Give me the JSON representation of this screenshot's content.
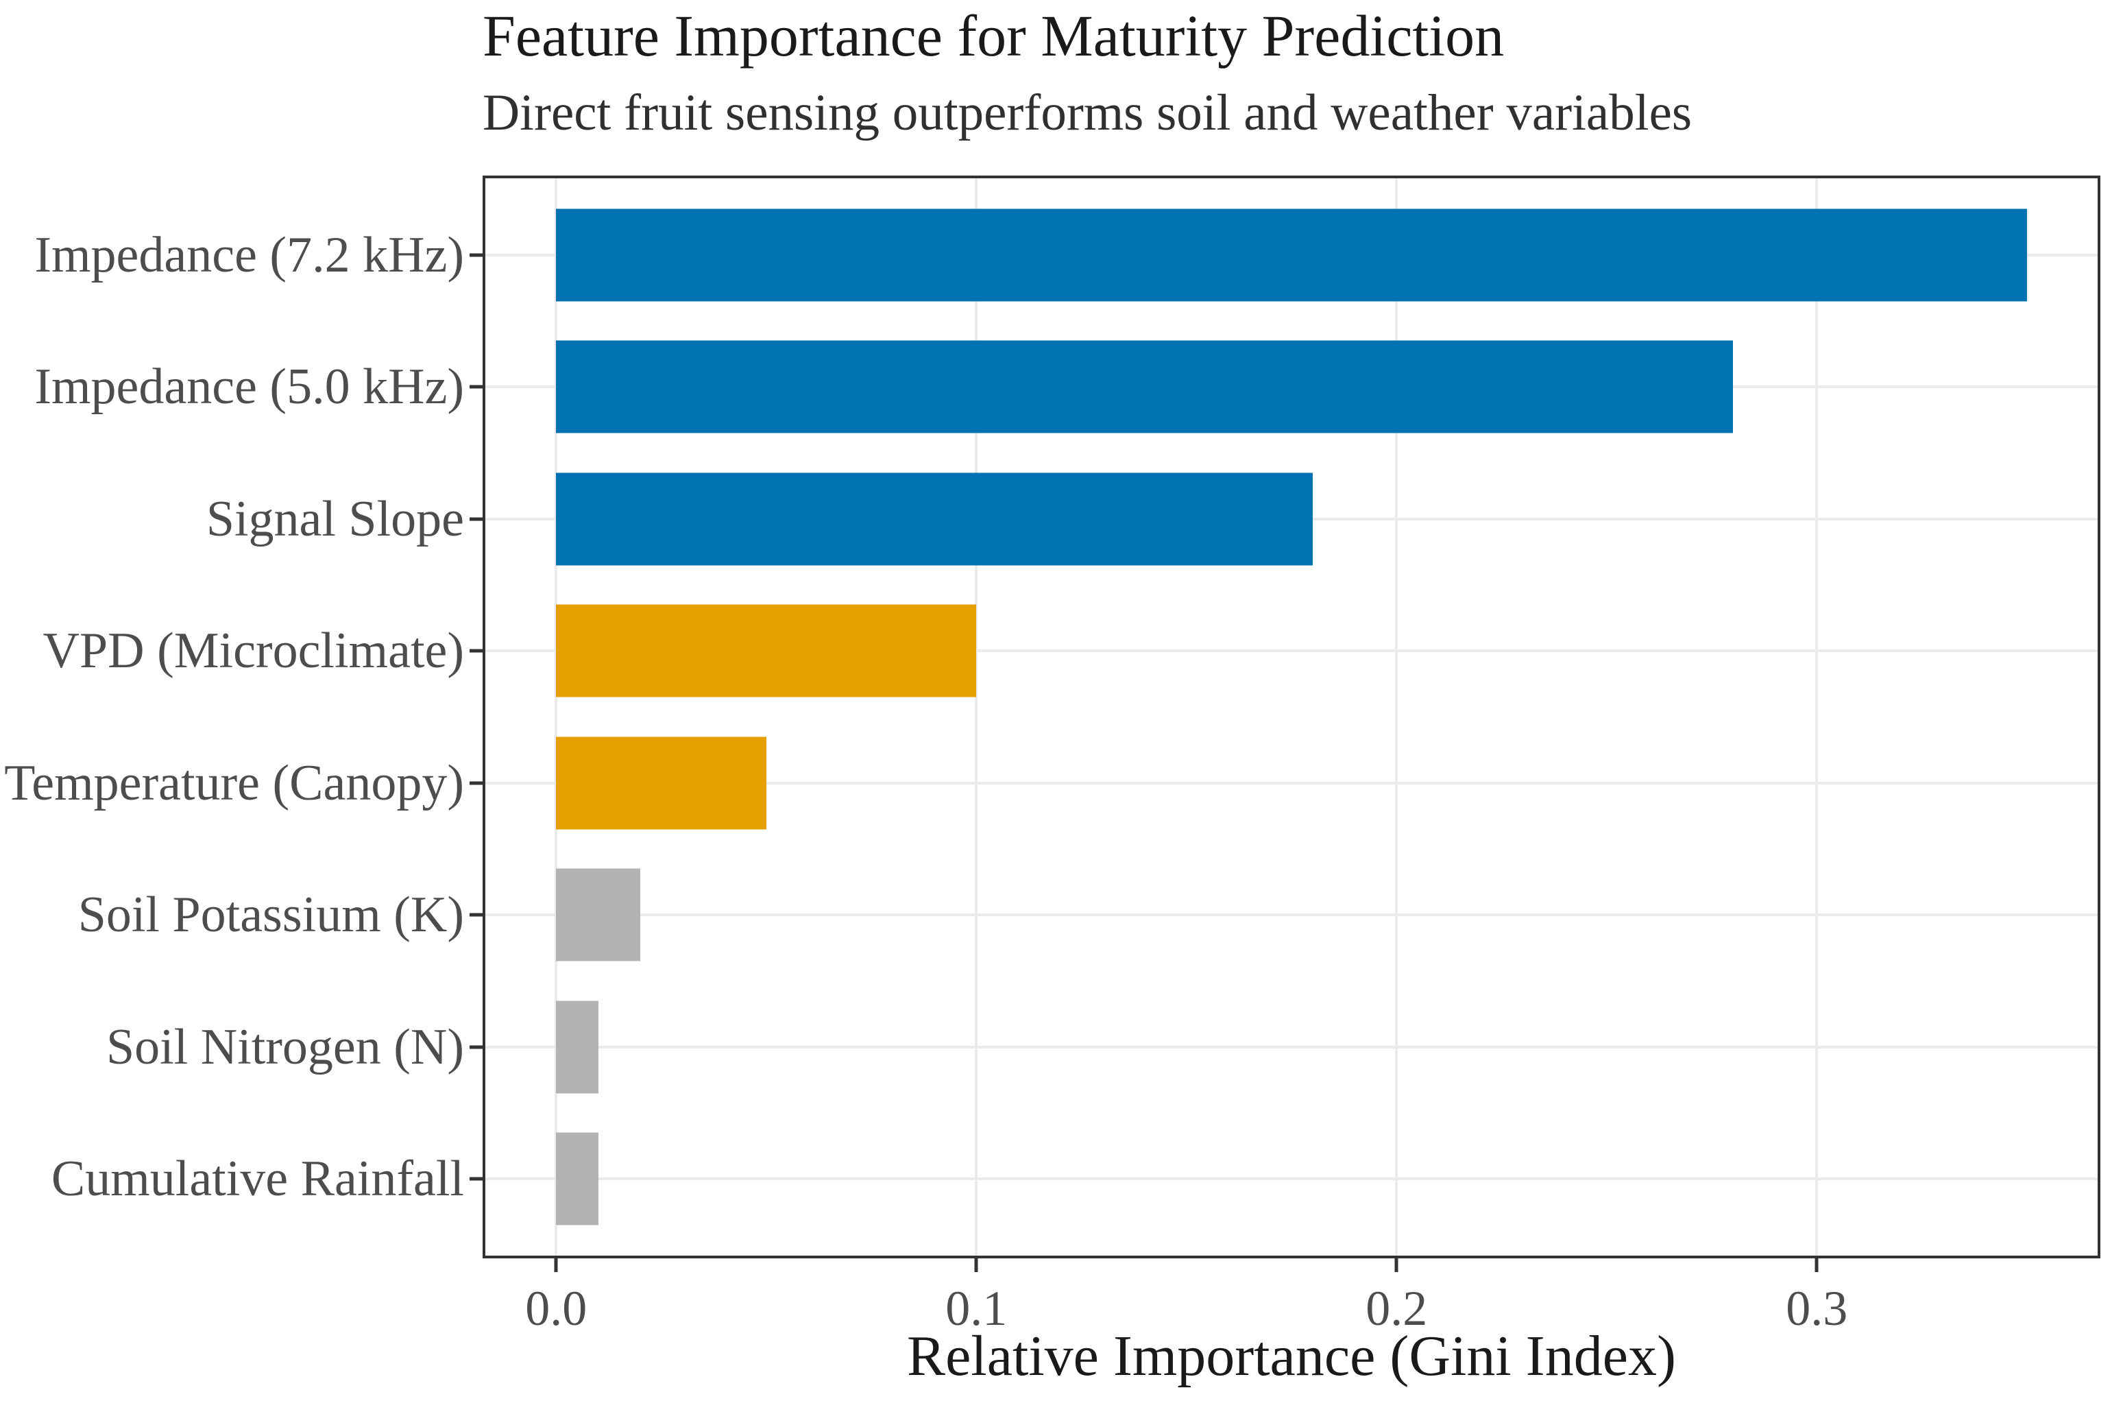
{
  "chart_data": {
    "type": "bar",
    "orientation": "horizontal",
    "title": "Feature Importance for Maturity Prediction",
    "subtitle": "Direct fruit sensing outperforms soil and weather variables",
    "xlabel": "Relative Importance (Gini Index)",
    "ylabel": "",
    "categories": [
      "Impedance (7.2 kHz)",
      "Impedance (5.0 kHz)",
      "Signal Slope",
      "VPD (Microclimate)",
      "Temperature (Canopy)",
      "Soil Potassium (K)",
      "Soil Nitrogen (N)",
      "Cumulative Rainfall"
    ],
    "values": [
      0.35,
      0.28,
      0.18,
      0.1,
      0.05,
      0.02,
      0.01,
      0.01
    ],
    "bar_colors": [
      "#0072B2",
      "#0072B2",
      "#0072B2",
      "#E69F00",
      "#E69F00",
      "#B3B3B3",
      "#B3B3B3",
      "#B3B3B3"
    ],
    "x_ticks": [
      0.0,
      0.1,
      0.2,
      0.3
    ],
    "x_tick_labels": [
      "0.0",
      "0.1",
      "0.2",
      "0.3"
    ],
    "xlim": [
      -0.0175,
      0.3675
    ],
    "bar_width_fraction": 0.7,
    "grid": "major-only",
    "gridlines_horizontal": "one per category row",
    "legend_position": "none",
    "colors": {
      "fruit_sensing_blue": "#0072B2",
      "weather_orange": "#E69F00",
      "soil_gray": "#B3B3B3",
      "gridline": "#ebebeb",
      "panel_border": "#333333",
      "axis_text": "#4d4d4d",
      "title_text": "#1a1a1a"
    }
  }
}
